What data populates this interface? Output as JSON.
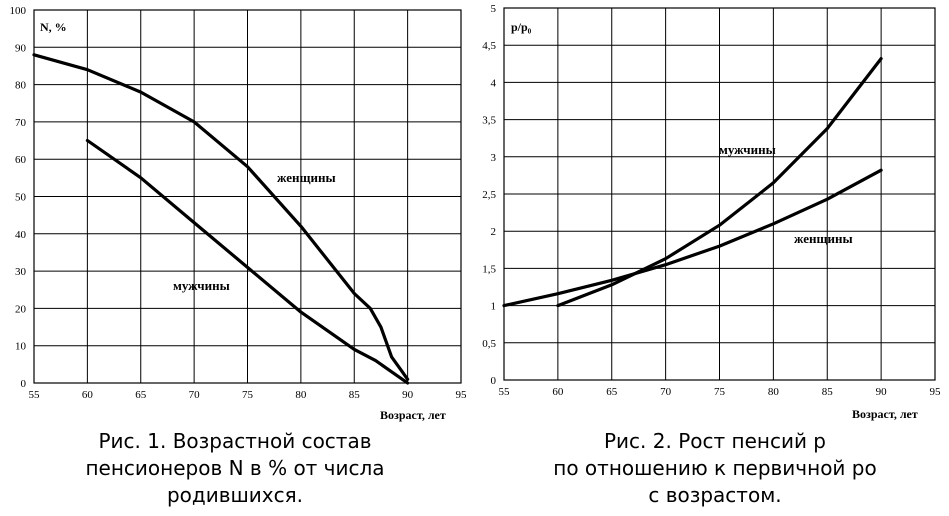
{
  "chart_data": [
    {
      "type": "line",
      "ylabel": "N, %",
      "xlabel": "Возраст, лет",
      "xlim": [
        55,
        95
      ],
      "ylim": [
        0,
        100
      ],
      "xticks": [
        "55",
        "60",
        "65",
        "70",
        "75",
        "80",
        "85",
        "90",
        "95"
      ],
      "yticks": [
        "0",
        "10",
        "20",
        "30",
        "40",
        "50",
        "60",
        "70",
        "80",
        "90",
        "100"
      ],
      "grid": true,
      "series": [
        {
          "name": "женщины",
          "x": [
            55,
            60,
            65,
            70,
            75,
            80,
            85,
            86.5,
            87.5,
            88.5,
            89.5,
            90
          ],
          "y": [
            88,
            84,
            78,
            70,
            58,
            42,
            24,
            20,
            15,
            7,
            3,
            1
          ]
        },
        {
          "name": "мужчины",
          "x": [
            60,
            65,
            70,
            75,
            80,
            85,
            87,
            88.5,
            90
          ],
          "y": [
            65,
            55,
            43,
            31,
            19,
            9,
            6,
            3,
            0
          ]
        }
      ],
      "caption": [
        "Рис. 1. Возрастной состав",
        "пенсионеров N в % от числа",
        "родившихся."
      ]
    },
    {
      "type": "line",
      "ylabel": "p/p₀",
      "xlabel": "Возраст, лет",
      "xlim": [
        55,
        95
      ],
      "ylim": [
        0,
        5
      ],
      "xticks": [
        "55",
        "60",
        "65",
        "70",
        "75",
        "80",
        "85",
        "90",
        "95"
      ],
      "yticks": [
        "0",
        "0,5",
        "1",
        "1,5",
        "2",
        "2,5",
        "3",
        "3,5",
        "4",
        "4,5",
        "5"
      ],
      "grid": true,
      "series": [
        {
          "name": "мужчины",
          "x": [
            60,
            65,
            70,
            75,
            80,
            85,
            90
          ],
          "y": [
            1.0,
            1.28,
            1.63,
            2.08,
            2.65,
            3.38,
            4.32
          ]
        },
        {
          "name": "женщины",
          "x": [
            55,
            60,
            65,
            70,
            75,
            80,
            85,
            90
          ],
          "y": [
            1.0,
            1.16,
            1.34,
            1.55,
            1.8,
            2.1,
            2.43,
            2.82
          ]
        }
      ],
      "caption": [
        "Рис. 2. Рост пенсий р",
        "по отношению к первичной ро",
        "с возрастом."
      ]
    }
  ]
}
